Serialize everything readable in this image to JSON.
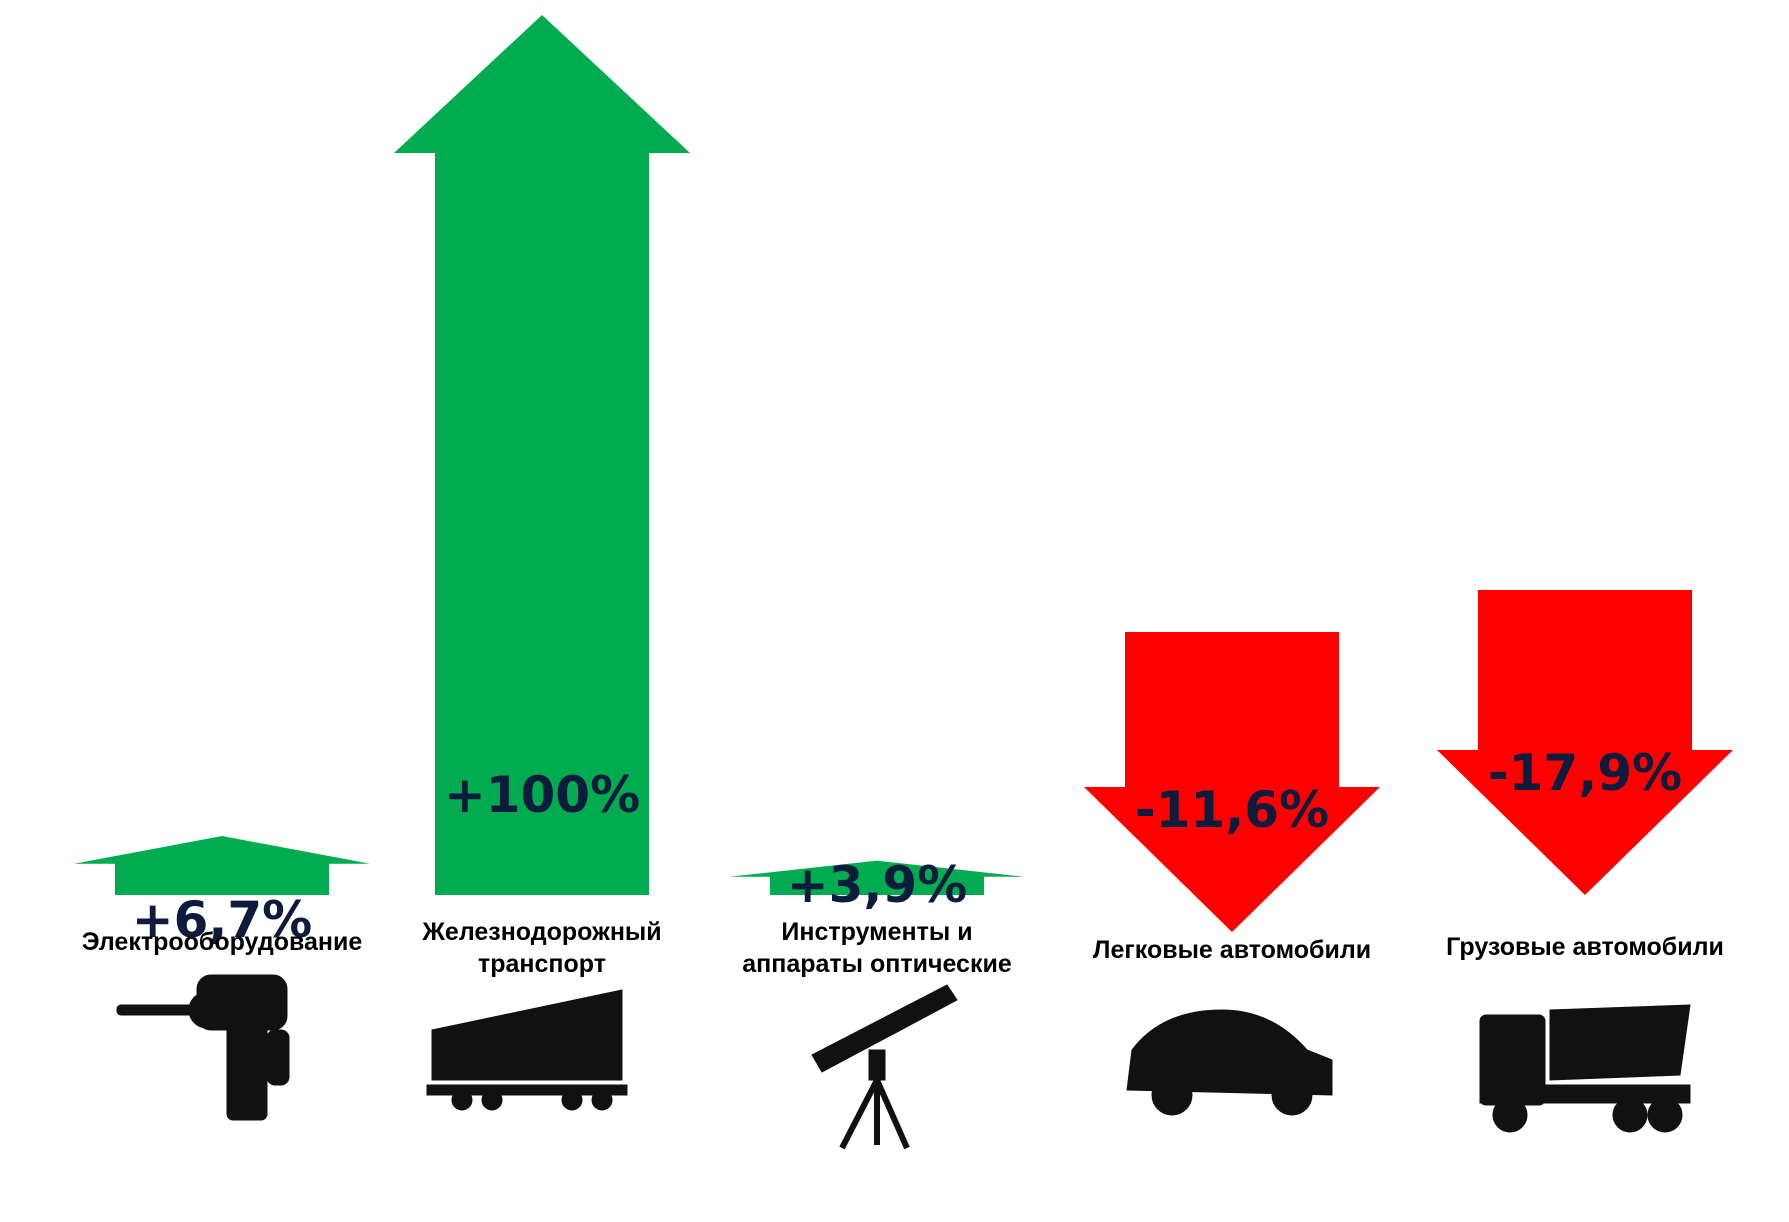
{
  "colors": {
    "increase": "#00ac4f",
    "decrease": "#ff0000",
    "value_text": "#0d1b3d",
    "label_text": "#000000"
  },
  "chart_data": {
    "type": "bar",
    "categories": [
      "Электрооборудование",
      "Железнодорожный транспорт",
      "Инструменты и аппараты оптические",
      "Легковые автомобили",
      "Грузовые автомобили"
    ],
    "category_lines": [
      [
        "Электрооборудование"
      ],
      [
        "Железнодорожный",
        "транспорт"
      ],
      [
        "Инструменты и",
        "аппараты оптические"
      ],
      [
        "Легковые автомобили"
      ],
      [
        "Грузовые автомобили"
      ]
    ],
    "values": [
      6.7,
      100,
      3.9,
      -11.6,
      -17.9
    ],
    "value_labels": [
      "+6,7%",
      "+100%",
      "+3,9%",
      "-11,6%",
      "-17,9%"
    ],
    "icons": [
      "drill-icon",
      "freight-wagon-icon",
      "telescope-icon",
      "car-icon",
      "truck-icon"
    ],
    "unit": "%",
    "title": "",
    "xlabel": "",
    "ylabel": "",
    "legend": "none",
    "grid": false
  }
}
